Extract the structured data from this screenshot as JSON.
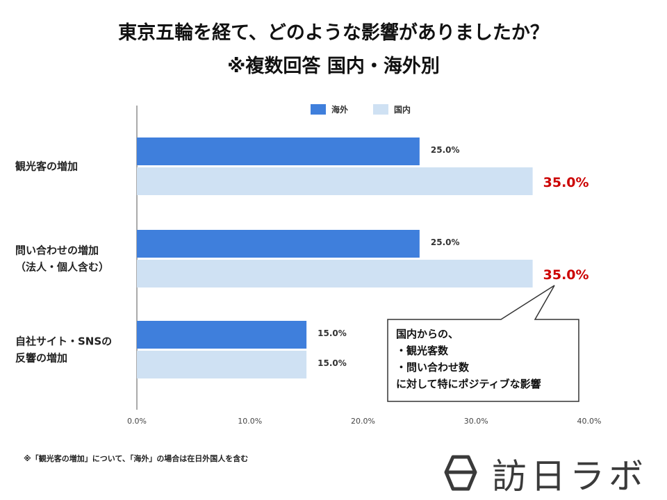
{
  "title": {
    "line1": "東京五輪を経て、どのような影響がありましたか？",
    "line2": "※複数回答 国内・海外別"
  },
  "chart_data": {
    "type": "bar",
    "orientation": "horizontal",
    "categories": [
      [
        "観光客の増加"
      ],
      [
        "問い合わせの増加",
        "（法人・個人含む）"
      ],
      [
        "自社サイト・SNSの",
        "反響の増加"
      ]
    ],
    "series": [
      {
        "name": "海外",
        "color": "#3f7fdc",
        "values": [
          25.0,
          25.0,
          15.0
        ],
        "labels": [
          "25.0%",
          "25.0%",
          "15.0%"
        ]
      },
      {
        "name": "国内",
        "color": "#cfe1f3",
        "values": [
          35.0,
          35.0,
          15.0
        ],
        "labels": [
          "35.0%",
          "35.0%",
          "15.0%"
        ]
      }
    ],
    "highlight_color": "#cc0000",
    "highlight_labels": [
      [
        false,
        false,
        false
      ],
      [
        true,
        true,
        false
      ]
    ],
    "xlim": [
      0,
      40
    ],
    "xticks": [
      0,
      10,
      20,
      30,
      40
    ],
    "xtick_labels": [
      "0.0%",
      "10.0%",
      "20.0%",
      "30.0%",
      "40.0%"
    ],
    "legend_position": "top",
    "grid": false
  },
  "callout": {
    "lines": [
      "国内からの、",
      "・観光客数",
      "・問い合わせ数",
      "に対して特にポジティブな影響"
    ]
  },
  "footnote": "※「観光客の増加」について、「海外」の場合は在日外国人を含む",
  "logo": {
    "text": "訪日ラボ",
    "icon": "lantern-logo-icon"
  }
}
